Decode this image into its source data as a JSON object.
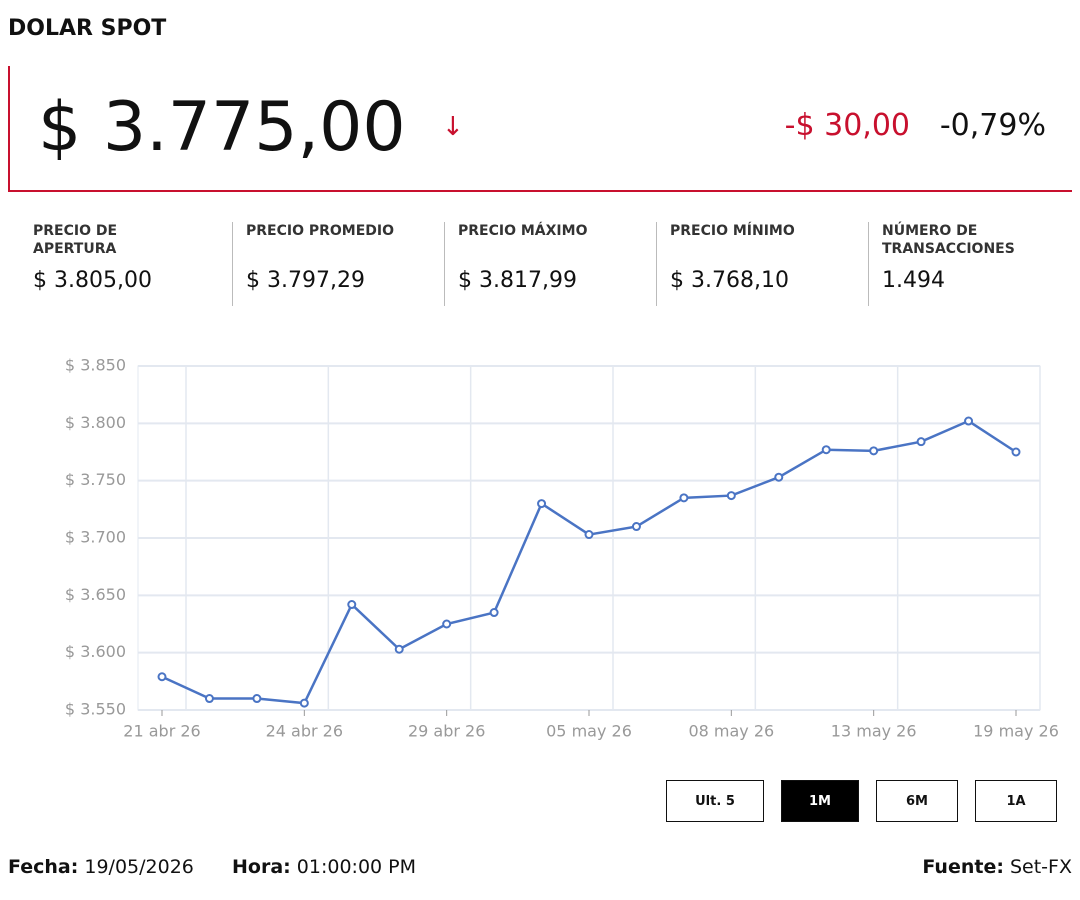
{
  "header": {
    "title": "DOLAR SPOT"
  },
  "quote": {
    "price": "$ 3.775,00",
    "arrow": "↓",
    "change": "-$ 30,00",
    "change_pct": "-0,79%"
  },
  "stats": [
    {
      "label": "PRECIO DE APERTURA",
      "value": "$ 3.805,00"
    },
    {
      "label": "PRECIO PROMEDIO",
      "value": "$ 3.797,29"
    },
    {
      "label": "PRECIO MÁXIMO",
      "value": "$ 3.817,99"
    },
    {
      "label": "PRECIO MÍNIMO",
      "value": "$ 3.768,10"
    },
    {
      "label": "NÚMERO DE TRANSACCIONES",
      "value": "1.494"
    }
  ],
  "chart_data": {
    "type": "line",
    "categories": [
      "21 abr 26",
      null,
      null,
      "24 abr 26",
      null,
      null,
      "29 abr 26",
      null,
      null,
      "05 may 26",
      null,
      null,
      "08 may 26",
      null,
      null,
      "13 may 26",
      null,
      null,
      "19 may 26"
    ],
    "values": [
      3579,
      3560,
      3560,
      3556,
      3642,
      3603,
      3625,
      3635,
      3730,
      3703,
      3710,
      3735,
      3737,
      3753,
      3777,
      3776,
      3784,
      3802,
      3775
    ],
    "color": "#4a74c4",
    "ylim": [
      3550,
      3850
    ],
    "yticks": [
      {
        "value": 3550,
        "label": "$ 3.550"
      },
      {
        "value": 3600,
        "label": "$ 3.600"
      },
      {
        "value": 3650,
        "label": "$ 3.650"
      },
      {
        "value": 3700,
        "label": "$ 3.700"
      },
      {
        "value": 3750,
        "label": "$ 3.750"
      },
      {
        "value": 3800,
        "label": "$ 3.800"
      },
      {
        "value": 3850,
        "label": "$ 3.850"
      }
    ],
    "grid": true
  },
  "buttons": [
    {
      "label": "Ult. 5",
      "active": false
    },
    {
      "label": "1M",
      "active": true
    },
    {
      "label": "6M",
      "active": false
    },
    {
      "label": "1A",
      "active": false
    }
  ],
  "footer": {
    "date_label": "Fecha:",
    "date": "19/05/2026",
    "time_label": "Hora:",
    "time": "01:00:00 PM",
    "source_label": "Fuente:",
    "source": "Set-FX"
  }
}
